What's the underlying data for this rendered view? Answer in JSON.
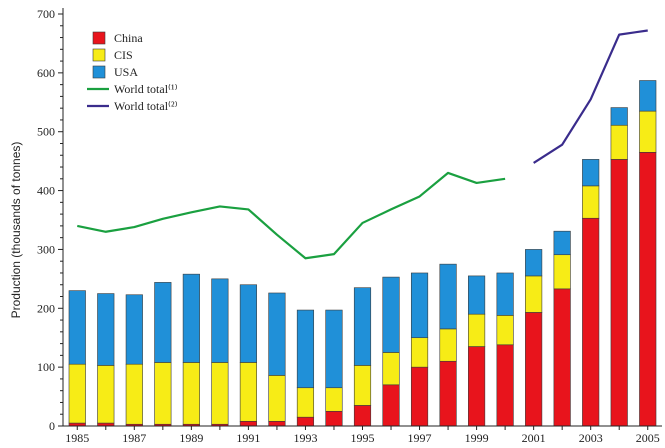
{
  "chart_data": {
    "type": "bar",
    "stacked": true,
    "ylabel": "Production (thousands of tonnes)",
    "ylim": [
      0,
      700
    ],
    "yticks": [
      0,
      100,
      200,
      300,
      400,
      500,
      600,
      700
    ],
    "years": [
      1985,
      1986,
      1987,
      1988,
      1989,
      1990,
      1991,
      1992,
      1993,
      1994,
      1995,
      1996,
      1997,
      1998,
      1999,
      2000,
      2001,
      2002,
      2003,
      2004,
      2005
    ],
    "xtick_labels": [
      "1985",
      "1987",
      "1989",
      "1991",
      "1993",
      "1995",
      "1997",
      "1999",
      "2001",
      "2003",
      "2005"
    ],
    "legend_position": "top-left",
    "series": [
      {
        "name": "China",
        "color": "#e8141c",
        "values": [
          5,
          5,
          3,
          3,
          3,
          3,
          8,
          8,
          15,
          25,
          35,
          70,
          100,
          110,
          135,
          138,
          193,
          233,
          353,
          453,
          465
        ]
      },
      {
        "name": "CIS",
        "color": "#f7ec16",
        "values": [
          100,
          98,
          102,
          105,
          105,
          105,
          100,
          78,
          50,
          40,
          68,
          55,
          50,
          55,
          55,
          50,
          62,
          58,
          55,
          58,
          70
        ]
      },
      {
        "name": "USA",
        "color": "#2090d8",
        "values": [
          125,
          122,
          118,
          136,
          150,
          142,
          132,
          140,
          132,
          132,
          132,
          128,
          110,
          110,
          65,
          72,
          45,
          40,
          45,
          30,
          52
        ]
      }
    ],
    "lines": [
      {
        "name": "World total⁽¹⁾",
        "color": "#1aa040",
        "x": [
          1985,
          1986,
          1987,
          1988,
          1989,
          1990,
          1991,
          1992,
          1993,
          1994,
          1995,
          1996,
          1997,
          1998,
          1999,
          2000
        ],
        "values": [
          340,
          330,
          338,
          352,
          363,
          373,
          368,
          325,
          285,
          292,
          345,
          368,
          390,
          430,
          413,
          420
        ]
      },
      {
        "name": "World total⁽²⁾",
        "color": "#3a2c8c",
        "x": [
          2001,
          2002,
          2003,
          2004,
          2005
        ],
        "values": [
          447,
          478,
          555,
          665,
          672
        ]
      }
    ]
  }
}
